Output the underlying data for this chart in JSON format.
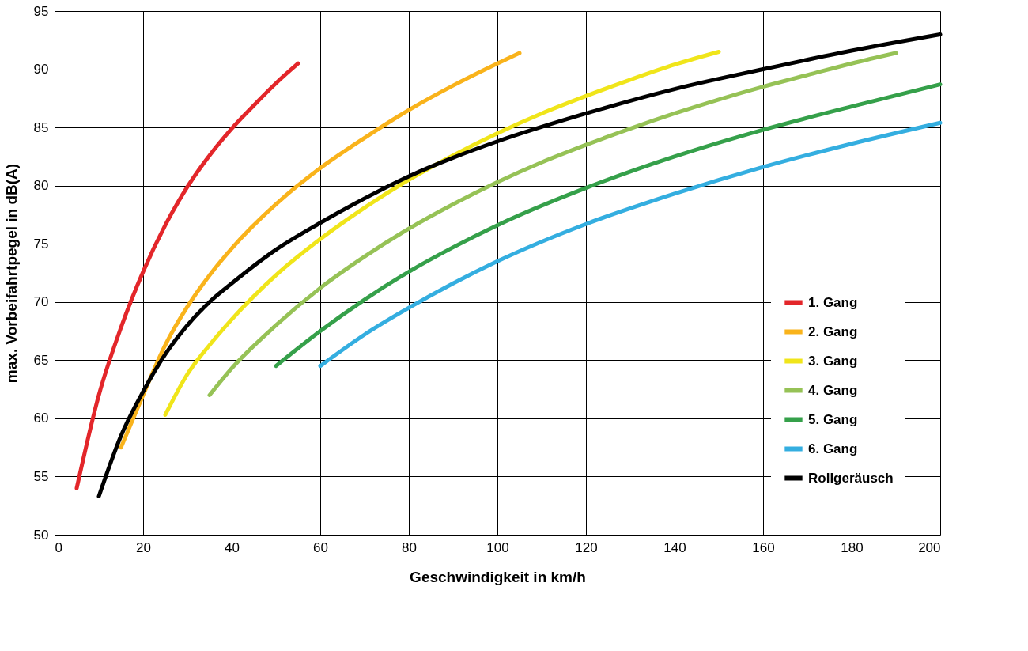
{
  "chart_data": {
    "type": "line",
    "xlabel": "Geschwindigkeit in km/h",
    "ylabel": "max. Vorbeifahrtpegel in dB(A)",
    "xlim": [
      0,
      200
    ],
    "ylim": [
      50,
      95
    ],
    "xticks": [
      0,
      20,
      40,
      60,
      80,
      100,
      120,
      140,
      160,
      180,
      200
    ],
    "yticks": [
      50,
      55,
      60,
      65,
      70,
      75,
      80,
      85,
      90,
      95
    ],
    "grid": true,
    "legend": "bottom right",
    "marker": "none",
    "line_style": "solid",
    "series": [
      {
        "name": "1. Gang",
        "color": "#e3262a",
        "x": [
          5,
          10,
          15,
          20,
          25,
          30,
          35,
          40,
          45,
          50,
          55
        ],
        "values": [
          54,
          62,
          67.8,
          72.6,
          76.6,
          79.9,
          82.6,
          84.9,
          86.9,
          88.8,
          90.5
        ]
      },
      {
        "name": "2. Gang",
        "color": "#f9b31b",
        "x": [
          15,
          20,
          25,
          30,
          35,
          40,
          50,
          60,
          70,
          80,
          90,
          100,
          105
        ],
        "values": [
          57.5,
          62,
          66.3,
          69.6,
          72.3,
          74.6,
          78.4,
          81.5,
          84.1,
          86.5,
          88.6,
          90.5,
          91.4
        ]
      },
      {
        "name": "3. Gang",
        "color": "#f0e51a",
        "x": [
          25,
          30,
          35,
          40,
          50,
          60,
          70,
          80,
          90,
          100,
          110,
          120,
          130,
          140,
          150
        ],
        "values": [
          60.3,
          63.8,
          66.3,
          68.5,
          72.3,
          75.4,
          78.1,
          80.5,
          82.6,
          84.5,
          86.2,
          87.7,
          89.1,
          90.4,
          91.5
        ]
      },
      {
        "name": "4. Gang",
        "color": "#96c256",
        "x": [
          35,
          40,
          50,
          60,
          70,
          80,
          90,
          100,
          110,
          120,
          130,
          140,
          150,
          160,
          170,
          180,
          190
        ],
        "values": [
          62,
          64.3,
          68,
          71.2,
          73.9,
          76.3,
          78.4,
          80.3,
          82,
          83.5,
          84.9,
          86.2,
          87.4,
          88.5,
          89.5,
          90.5,
          91.4
        ]
      },
      {
        "name": "5. Gang",
        "color": "#35a04a",
        "x": [
          50,
          60,
          70,
          80,
          90,
          100,
          120,
          140,
          160,
          180,
          200
        ],
        "values": [
          64.5,
          67.5,
          70.2,
          72.6,
          74.7,
          76.6,
          79.8,
          82.5,
          84.8,
          86.8,
          88.7
        ]
      },
      {
        "name": "6. Gang",
        "color": "#34aee0",
        "x": [
          60,
          70,
          80,
          90,
          100,
          120,
          140,
          160,
          180,
          200
        ],
        "values": [
          64.5,
          67.2,
          69.5,
          71.6,
          73.5,
          76.7,
          79.3,
          81.6,
          83.6,
          85.4
        ]
      },
      {
        "name": "Rollgeräusch",
        "color": "#000000",
        "x": [
          10,
          15,
          20,
          25,
          30,
          35,
          40,
          50,
          60,
          70,
          80,
          90,
          100,
          120,
          140,
          160,
          180,
          200
        ],
        "values": [
          53.3,
          58.5,
          62.3,
          65.5,
          68,
          70,
          71.6,
          74.5,
          76.8,
          78.9,
          80.8,
          82.4,
          83.8,
          86.2,
          88.3,
          90,
          91.6,
          93
        ]
      }
    ]
  }
}
